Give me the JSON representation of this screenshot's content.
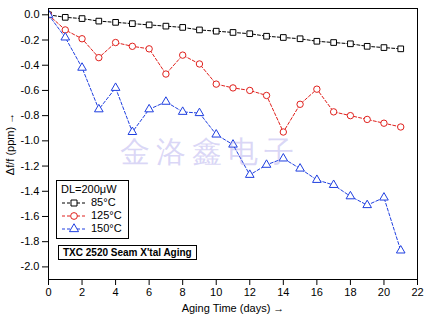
{
  "chart_data": {
    "type": "line",
    "x_label": "Aging Time (days)",
    "y_label": "Δf/f (ppm)",
    "x": [
      0,
      1,
      2,
      3,
      4,
      5,
      6,
      7,
      8,
      9,
      10,
      11,
      12,
      13,
      14,
      15,
      16,
      17,
      18,
      19,
      20,
      21
    ],
    "series": [
      {
        "name": "85°C",
        "color": "#000000",
        "marker": "square",
        "line_style": "dashed",
        "values": [
          0,
          -0.02,
          -0.03,
          -0.05,
          -0.06,
          -0.07,
          -0.08,
          -0.09,
          -0.1,
          -0.12,
          -0.13,
          -0.14,
          -0.15,
          -0.17,
          -0.18,
          -0.19,
          -0.21,
          -0.22,
          -0.23,
          -0.25,
          -0.26,
          -0.27
        ]
      },
      {
        "name": "125°C",
        "color": "#e0201c",
        "marker": "circle",
        "line_style": "dashed",
        "values": [
          0,
          -0.12,
          -0.19,
          -0.34,
          -0.22,
          -0.25,
          -0.27,
          -0.47,
          -0.32,
          -0.39,
          -0.55,
          -0.58,
          -0.6,
          -0.64,
          -0.93,
          -0.71,
          -0.59,
          -0.77,
          -0.8,
          -0.83,
          -0.86,
          -0.89
        ]
      },
      {
        "name": "150°C",
        "color": "#1f3fe0",
        "marker": "triangle",
        "line_style": "dashed",
        "values": [
          0,
          -0.18,
          -0.42,
          -0.75,
          -0.58,
          -0.93,
          -0.75,
          -0.69,
          -0.77,
          -0.78,
          -0.95,
          -1.03,
          -1.27,
          -1.19,
          -1.14,
          -1.22,
          -1.31,
          -1.35,
          -1.44,
          -1.51,
          -1.45,
          -1.87
        ]
      }
    ],
    "xlim": [
      0,
      22
    ],
    "xticks": [
      0,
      2,
      4,
      6,
      8,
      10,
      12,
      14,
      16,
      18,
      20,
      22
    ],
    "ylim": [
      -2.1,
      0.05
    ],
    "yticks": [
      {
        "value": 0,
        "label": "0.0"
      },
      -0.2,
      -0.4,
      -0.6,
      -0.8,
      {
        "value": -1,
        "label": "-1.0"
      },
      -1.2,
      -1.4,
      -1.6,
      -1.8,
      {
        "value": -2,
        "label": "-2.0"
      }
    ],
    "legend": "lower left",
    "legend_title": "DL=200μW",
    "annotation": "TXC 2520 Seam X'tal Aging",
    "watermark": "金洛鑫电子"
  }
}
